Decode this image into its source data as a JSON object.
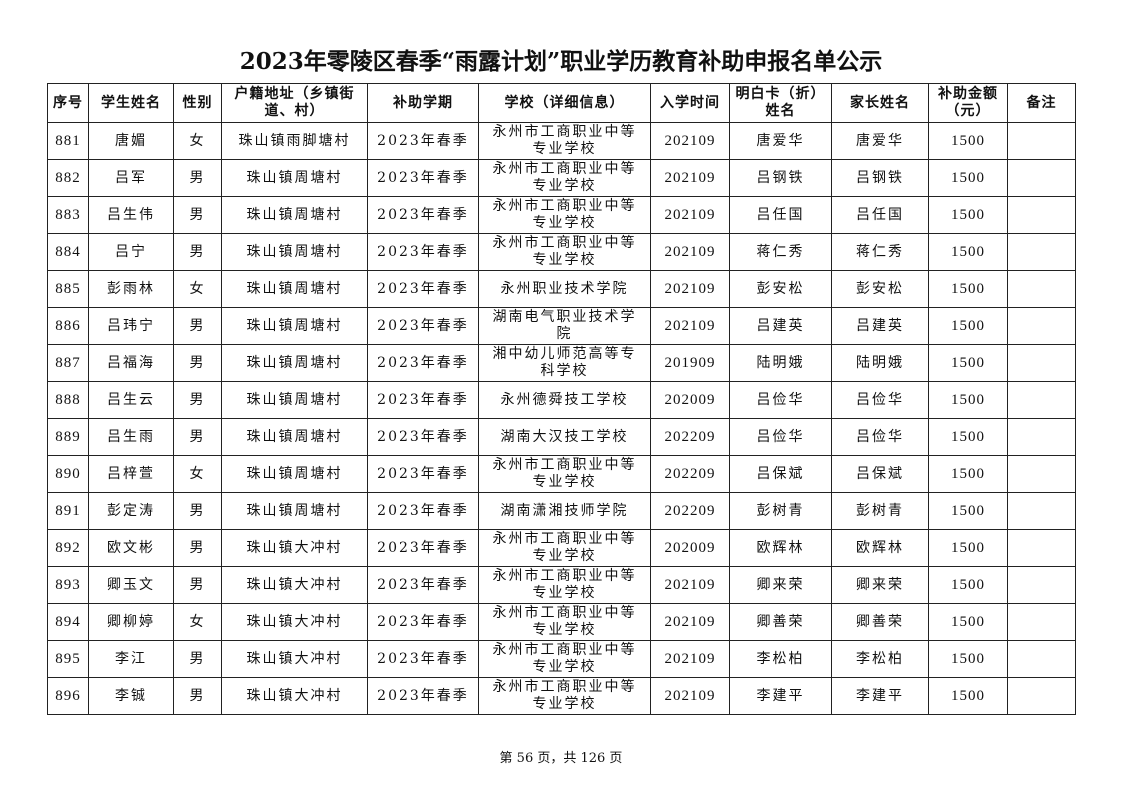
{
  "title": "2023年零陵区春季“雨露计划”职业学历教育补助申报名单公示",
  "columns": [
    "序号",
    "学生姓名",
    "性别",
    "户籍地址（乡镇街道、村）",
    "补助学期",
    "学校（详细信息）",
    "入学时间",
    "明白卡（折）姓名",
    "家长姓名",
    "补助金额（元）",
    "备注"
  ],
  "rows": [
    [
      "881",
      "唐媚",
      "女",
      "珠山镇雨脚塘村",
      "2023年春季",
      "永州市工商职业中等专业学校",
      "202109",
      "唐爱华",
      "唐爱华",
      "1500",
      ""
    ],
    [
      "882",
      "吕军",
      "男",
      "珠山镇周塘村",
      "2023年春季",
      "永州市工商职业中等专业学校",
      "202109",
      "吕钢铁",
      "吕钢铁",
      "1500",
      ""
    ],
    [
      "883",
      "吕生伟",
      "男",
      "珠山镇周塘村",
      "2023年春季",
      "永州市工商职业中等专业学校",
      "202109",
      "吕任国",
      "吕任国",
      "1500",
      ""
    ],
    [
      "884",
      "吕宁",
      "男",
      "珠山镇周塘村",
      "2023年春季",
      "永州市工商职业中等专业学校",
      "202109",
      "蒋仁秀",
      "蒋仁秀",
      "1500",
      ""
    ],
    [
      "885",
      "彭雨林",
      "女",
      "珠山镇周塘村",
      "2023年春季",
      "永州职业技术学院",
      "202109",
      "彭安松",
      "彭安松",
      "1500",
      ""
    ],
    [
      "886",
      "吕玮宁",
      "男",
      "珠山镇周塘村",
      "2023年春季",
      "湖南电气职业技术学院",
      "202109",
      "吕建英",
      "吕建英",
      "1500",
      ""
    ],
    [
      "887",
      "吕福海",
      "男",
      "珠山镇周塘村",
      "2023年春季",
      "湘中幼儿师范高等专科学校",
      "201909",
      "陆明娥",
      "陆明娥",
      "1500",
      ""
    ],
    [
      "888",
      "吕生云",
      "男",
      "珠山镇周塘村",
      "2023年春季",
      "永州德舜技工学校",
      "202009",
      "吕俭华",
      "吕俭华",
      "1500",
      ""
    ],
    [
      "889",
      "吕生雨",
      "男",
      "珠山镇周塘村",
      "2023年春季",
      "湖南大汉技工学校",
      "202209",
      "吕俭华",
      "吕俭华",
      "1500",
      ""
    ],
    [
      "890",
      "吕梓萱",
      "女",
      "珠山镇周塘村",
      "2023年春季",
      "永州市工商职业中等专业学校",
      "202209",
      "吕保斌",
      "吕保斌",
      "1500",
      ""
    ],
    [
      "891",
      "彭定涛",
      "男",
      "珠山镇周塘村",
      "2023年春季",
      "湖南潇湘技师学院",
      "202209",
      "彭树青",
      "彭树青",
      "1500",
      ""
    ],
    [
      "892",
      "欧文彬",
      "男",
      "珠山镇大冲村",
      "2023年春季",
      "永州市工商职业中等专业学校",
      "202009",
      "欧辉林",
      "欧辉林",
      "1500",
      ""
    ],
    [
      "893",
      "卿玉文",
      "男",
      "珠山镇大冲村",
      "2023年春季",
      "永州市工商职业中等专业学校",
      "202109",
      "卿来荣",
      "卿来荣",
      "1500",
      ""
    ],
    [
      "894",
      "卿柳婷",
      "女",
      "珠山镇大冲村",
      "2023年春季",
      "永州市工商职业中等专业学校",
      "202109",
      "卿善荣",
      "卿善荣",
      "1500",
      ""
    ],
    [
      "895",
      "李江",
      "男",
      "珠山镇大冲村",
      "2023年春季",
      "永州市工商职业中等专业学校",
      "202109",
      "李松柏",
      "李松柏",
      "1500",
      ""
    ],
    [
      "896",
      "李铖",
      "男",
      "珠山镇大冲村",
      "2023年春季",
      "永州市工商职业中等专业学校",
      "202109",
      "李建平",
      "李建平",
      "1500",
      ""
    ]
  ],
  "footer": "第 56 页，共 126 页"
}
